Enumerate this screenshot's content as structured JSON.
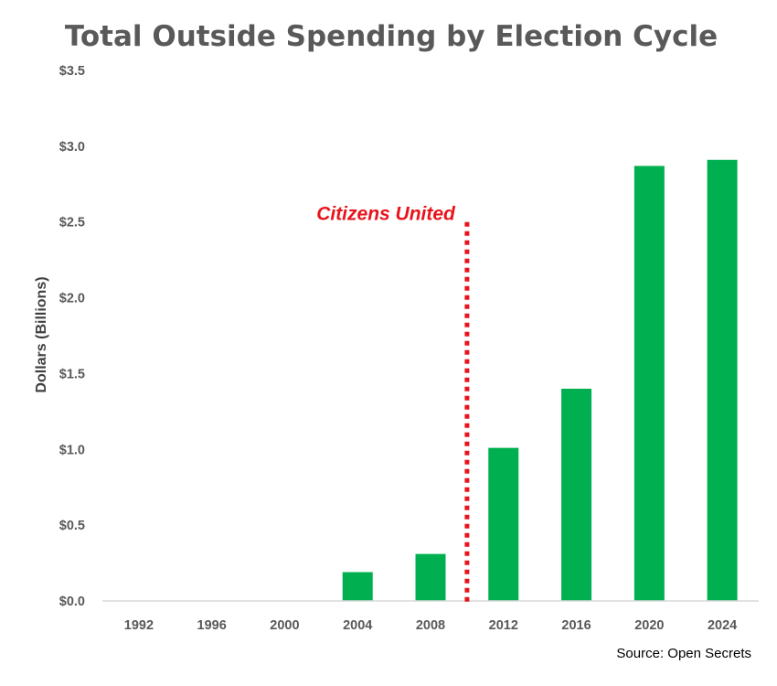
{
  "chart_data": {
    "type": "bar",
    "title": "Total Outside Spending by Election Cycle",
    "ylabel": "Dollars (Billions)",
    "xlabel": "",
    "categories": [
      "1992",
      "1996",
      "2000",
      "2004",
      "2008",
      "2012",
      "2016",
      "2020",
      "2024"
    ],
    "values": [
      0.0,
      0.0,
      0.0,
      0.19,
      0.31,
      1.01,
      1.4,
      2.87,
      2.91
    ],
    "ylim": [
      0,
      3.5
    ],
    "yticks": [
      0,
      0.5,
      1.0,
      1.5,
      2.0,
      2.5,
      3.0,
      3.5
    ],
    "ytick_labels": [
      "$0.0",
      "$0.5",
      "$1.0",
      "$1.5",
      "$2.0",
      "$2.5",
      "$3.0",
      "$3.5"
    ],
    "grid": false,
    "legend": "none",
    "bar_color": "#00b050",
    "annotation": {
      "text": "Citizens United",
      "color": "#e8141c",
      "line_between": [
        "2008",
        "2012"
      ],
      "line_top_value": 2.5
    },
    "source": "Source: Open Secrets"
  }
}
